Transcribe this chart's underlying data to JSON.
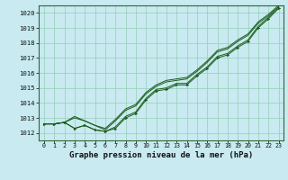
{
  "xlabel": "Graphe pression niveau de la mer (hPa)",
  "ylim": [
    1011.5,
    1020.5
  ],
  "xlim": [
    -0.5,
    23.5
  ],
  "yticks": [
    1012,
    1013,
    1014,
    1015,
    1016,
    1017,
    1018,
    1019,
    1020
  ],
  "xticks": [
    0,
    1,
    2,
    3,
    4,
    5,
    6,
    7,
    8,
    9,
    10,
    11,
    12,
    13,
    14,
    15,
    16,
    17,
    18,
    19,
    20,
    21,
    22,
    23
  ],
  "bg_color": "#c8eaf0",
  "grid_color": "#96ccb8",
  "line_color": "#1a5c1a",
  "series1": [
    1012.6,
    1012.6,
    1012.7,
    1012.3,
    1012.5,
    1012.2,
    1012.1,
    1012.3,
    1013.0,
    1013.3,
    1014.2,
    1014.8,
    1014.9,
    1015.2,
    1015.2,
    1015.8,
    1016.3,
    1017.0,
    1017.2,
    1017.7,
    1018.1,
    1019.0,
    1019.6,
    1020.3
  ],
  "series2": [
    1012.6,
    1012.6,
    1012.7,
    1013.0,
    1012.8,
    1012.5,
    1012.2,
    1012.8,
    1013.5,
    1013.8,
    1014.6,
    1015.1,
    1015.4,
    1015.5,
    1015.6,
    1016.1,
    1016.7,
    1017.4,
    1017.6,
    1018.1,
    1018.5,
    1019.3,
    1019.8,
    1020.4
  ],
  "series3": [
    1012.6,
    1012.6,
    1012.7,
    1013.1,
    1012.8,
    1012.5,
    1012.3,
    1012.9,
    1013.6,
    1013.9,
    1014.7,
    1015.2,
    1015.5,
    1015.6,
    1015.7,
    1016.2,
    1016.8,
    1017.5,
    1017.7,
    1018.2,
    1018.6,
    1019.4,
    1019.9,
    1020.5
  ],
  "series4": [
    1012.6,
    1012.6,
    1012.7,
    1012.3,
    1012.5,
    1012.2,
    1012.1,
    1012.4,
    1013.1,
    1013.4,
    1014.3,
    1014.9,
    1015.0,
    1015.3,
    1015.3,
    1015.9,
    1016.4,
    1017.1,
    1017.3,
    1017.8,
    1018.2,
    1019.1,
    1019.7,
    1020.4
  ]
}
